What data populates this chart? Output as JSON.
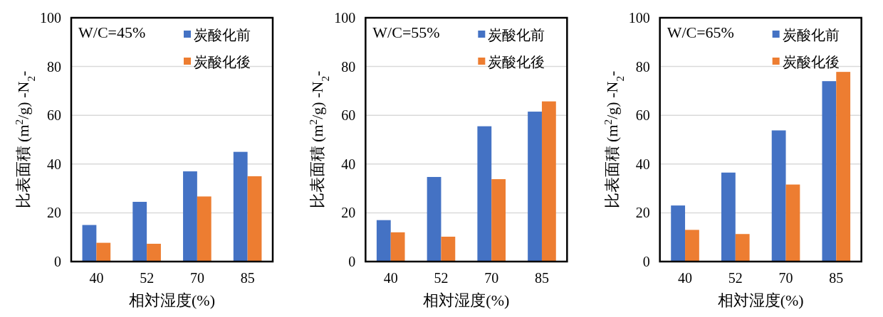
{
  "chart_data": [
    {
      "type": "bar",
      "categories": [
        "40",
        "52",
        "70",
        "85"
      ],
      "xlabel": "相対湿度(%)",
      "ylabel": "比表面積 (m$^{2}$/g) -N$_{2}$-",
      "annotations": [
        "W/C=45%"
      ],
      "ylim": [
        0,
        100
      ],
      "yticks": [
        0,
        20,
        40,
        60,
        80,
        100
      ],
      "grid": "y",
      "legend": "top right",
      "series": [
        {
          "name": "炭酸化前",
          "color": "#4472c4",
          "values": [
            15,
            24.5,
            37,
            45
          ]
        },
        {
          "name": "炭酸化後",
          "color": "#ed7d31",
          "values": [
            7.7,
            7.3,
            26.7,
            35
          ]
        }
      ]
    },
    {
      "type": "bar",
      "categories": [
        "40",
        "52",
        "70",
        "85"
      ],
      "xlabel": "相対湿度(%)",
      "ylabel": "比表面積 (m$^{2}$/g) -N$_{2}$-",
      "annotations": [
        "W/C=55%"
      ],
      "ylim": [
        0,
        100
      ],
      "yticks": [
        0,
        20,
        40,
        60,
        80,
        100
      ],
      "grid": "y",
      "legend": "top right",
      "series": [
        {
          "name": "炭酸化前",
          "color": "#4472c4",
          "values": [
            17,
            34.7,
            55.5,
            61.5
          ]
        },
        {
          "name": "炭酸化後",
          "color": "#ed7d31",
          "values": [
            12,
            10.2,
            33.8,
            65.7
          ]
        }
      ]
    },
    {
      "type": "bar",
      "categories": [
        "40",
        "52",
        "70",
        "85"
      ],
      "xlabel": "相対湿度(%)",
      "ylabel": "比表面積 (m$^{2}$/g) -N$_{2}$-",
      "annotations": [
        "W/C=65%"
      ],
      "ylim": [
        0,
        100
      ],
      "yticks": [
        0,
        20,
        40,
        60,
        80,
        100
      ],
      "grid": "y",
      "legend": "top right",
      "series": [
        {
          "name": "炭酸化前",
          "color": "#4472c4",
          "values": [
            23,
            36.5,
            53.8,
            74
          ]
        },
        {
          "name": "炭酸化後",
          "color": "#ed7d31",
          "values": [
            13,
            11.3,
            31.6,
            77.8
          ]
        }
      ]
    }
  ]
}
